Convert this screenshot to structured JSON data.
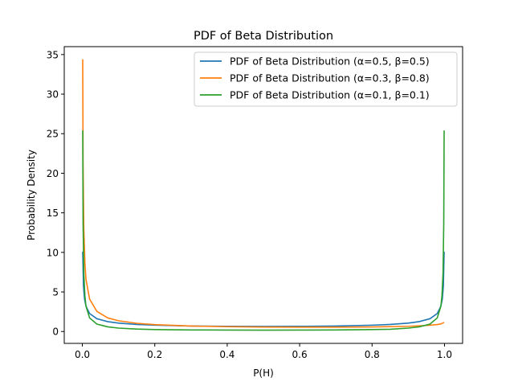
{
  "chart_data": {
    "type": "line",
    "title": "PDF of Beta Distribution",
    "xlabel": "P(H)",
    "ylabel": "Probability Density",
    "xlim": [
      -0.05,
      1.05
    ],
    "ylim": [
      -1.5,
      36
    ],
    "xticks": [
      0.0,
      0.2,
      0.4,
      0.6,
      0.8,
      1.0
    ],
    "xtick_labels": [
      "0.0",
      "0.2",
      "0.4",
      "0.6",
      "0.8",
      "1.0"
    ],
    "yticks": [
      0,
      5,
      10,
      15,
      20,
      25,
      30,
      35
    ],
    "ytick_labels": [
      "0",
      "5",
      "10",
      "15",
      "20",
      "25",
      "30",
      "35"
    ],
    "grid": false,
    "legend_position": "top-right",
    "series": [
      {
        "name": "PDF of Beta Distribution (α=0.5, β=0.5)",
        "color": "#1f77b4",
        "x": [
          0.001,
          0.003,
          0.006,
          0.01,
          0.02,
          0.04,
          0.07,
          0.1,
          0.15,
          0.2,
          0.3,
          0.4,
          0.5,
          0.6,
          0.7,
          0.8,
          0.85,
          0.9,
          0.93,
          0.96,
          0.98,
          0.99,
          0.994,
          0.997,
          0.999
        ],
        "y": [
          10.1,
          5.8,
          4.1,
          3.2,
          2.27,
          1.62,
          1.25,
          1.06,
          0.89,
          0.8,
          0.69,
          0.65,
          0.64,
          0.65,
          0.69,
          0.8,
          0.89,
          1.06,
          1.25,
          1.62,
          2.27,
          3.2,
          4.1,
          5.8,
          10.1
        ]
      },
      {
        "name": "PDF of Beta Distribution (α=0.3, β=0.8)",
        "color": "#ff7f0e",
        "x": [
          0.001,
          0.002,
          0.004,
          0.007,
          0.01,
          0.02,
          0.04,
          0.07,
          0.1,
          0.15,
          0.2,
          0.3,
          0.4,
          0.5,
          0.6,
          0.7,
          0.8,
          0.9,
          0.95,
          0.98,
          0.99,
          0.999
        ],
        "y": [
          34.4,
          21.2,
          13.1,
          8.7,
          6.6,
          4.1,
          2.55,
          1.72,
          1.36,
          1.04,
          0.87,
          0.69,
          0.61,
          0.56,
          0.55,
          0.55,
          0.58,
          0.66,
          0.76,
          0.88,
          0.96,
          1.15
        ]
      },
      {
        "name": "PDF of Beta Distribution (α=0.1, β=0.1)",
        "color": "#2ca02c",
        "x": [
          0.001,
          0.002,
          0.004,
          0.007,
          0.01,
          0.02,
          0.04,
          0.07,
          0.1,
          0.15,
          0.2,
          0.3,
          0.4,
          0.5,
          0.6,
          0.7,
          0.8,
          0.85,
          0.9,
          0.93,
          0.96,
          0.98,
          0.99,
          0.993,
          0.996,
          0.998,
          0.999
        ],
        "y": [
          25.4,
          13.7,
          7.4,
          4.5,
          3.2,
          1.72,
          0.94,
          0.59,
          0.43,
          0.31,
          0.25,
          0.2,
          0.18,
          0.17,
          0.18,
          0.2,
          0.25,
          0.29,
          0.43,
          0.59,
          0.94,
          1.72,
          3.2,
          4.5,
          7.4,
          13.7,
          25.4
        ]
      }
    ]
  }
}
